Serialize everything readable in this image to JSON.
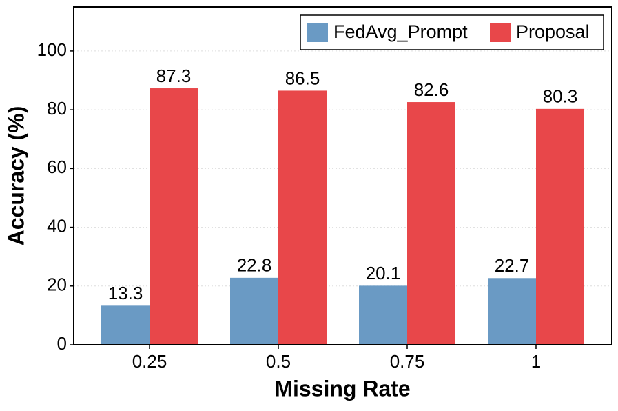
{
  "chart_data": {
    "type": "bar",
    "x_label": "Missing Rate",
    "y_label": "Accuracy (%)",
    "categories": [
      "0.25",
      "0.5",
      "0.75",
      "1"
    ],
    "series": [
      {
        "name": "FedAvg_Prompt",
        "color": "#6a9ac4",
        "values": [
          13.3,
          22.8,
          20.1,
          22.7
        ]
      },
      {
        "name": "Proposal",
        "color": "#e8474a",
        "values": [
          87.3,
          86.5,
          82.6,
          80.3
        ]
      }
    ],
    "ylim": [
      0,
      115
    ],
    "yticks": [
      0,
      20,
      40,
      60,
      80,
      100
    ],
    "grid": true,
    "legend": "upper right"
  }
}
